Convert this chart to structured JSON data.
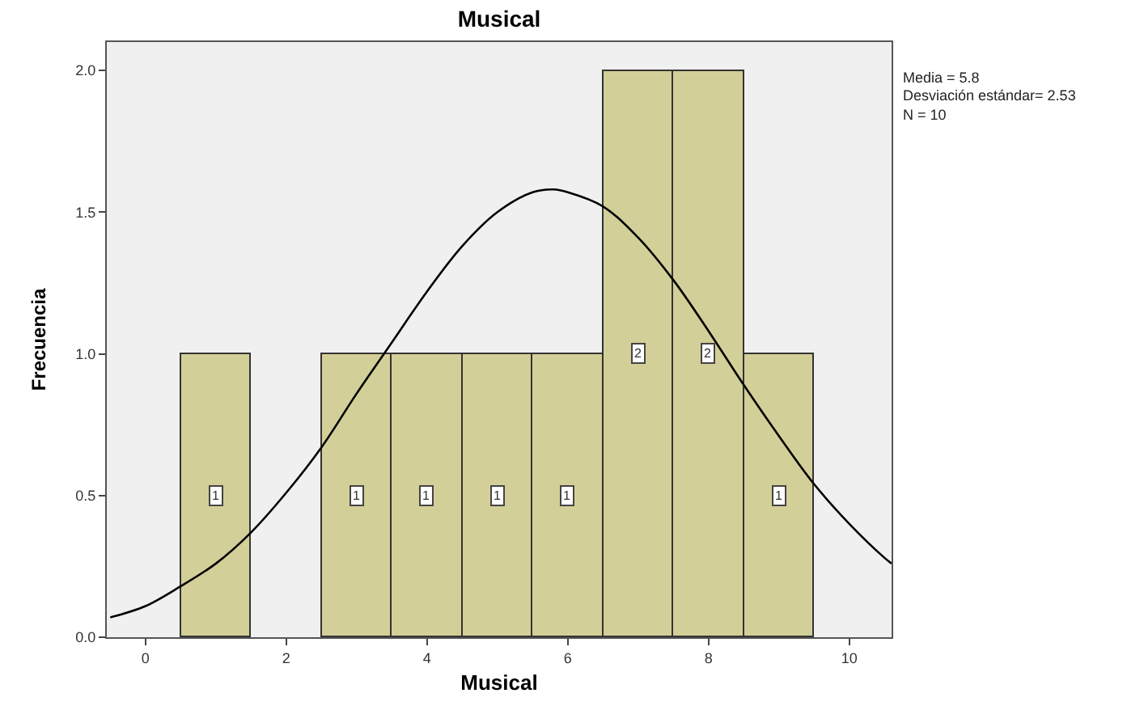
{
  "chart_data": {
    "type": "histogram",
    "title": "Musical",
    "xlabel": "Musical",
    "ylabel": "Frecuencia",
    "bins": [
      0.5,
      1.5,
      2.5,
      3.5,
      4.5,
      5.5,
      6.5,
      7.5,
      8.5,
      9.5
    ],
    "values": [
      1,
      0,
      1,
      1,
      1,
      1,
      2,
      2,
      1
    ],
    "value_labels": [
      "1",
      null,
      "1",
      "1",
      "1",
      "1",
      "2",
      "2",
      "1"
    ],
    "color": "#d3cf98",
    "series": [
      {
        "type": "line",
        "color": "#000000",
        "x": [
          -0.5,
          0,
          0.5,
          1,
          1.5,
          2,
          2.5,
          3,
          3.5,
          4,
          4.5,
          5,
          5.5,
          5.8,
          6,
          6.5,
          7,
          7.5,
          8,
          8.5,
          9,
          9.5,
          10,
          10.5,
          10.6
        ],
        "values": [
          0.07,
          0.11,
          0.18,
          0.26,
          0.37,
          0.51,
          0.67,
          0.86,
          1.04,
          1.22,
          1.38,
          1.5,
          1.57,
          1.58,
          1.57,
          1.52,
          1.41,
          1.26,
          1.08,
          0.89,
          0.71,
          0.54,
          0.4,
          0.28,
          0.26
        ]
      }
    ],
    "xlim": [
      -0.55,
      10.6
    ],
    "xticks": [
      0,
      2,
      4,
      6,
      8,
      10
    ],
    "ylim": [
      0,
      2.1
    ],
    "yticks": [
      {
        "value": 0,
        "label": "0.0"
      },
      {
        "value": 0.5,
        "label": "0.5"
      },
      {
        "value": 1,
        "label": "1.0"
      },
      {
        "value": 1.5,
        "label": "1.5"
      },
      {
        "value": 2,
        "label": "2.0"
      }
    ],
    "annotations": [
      "Media = 5.8",
      "Desviación estándar= 2.53",
      "N = 10"
    ],
    "grid": false
  }
}
